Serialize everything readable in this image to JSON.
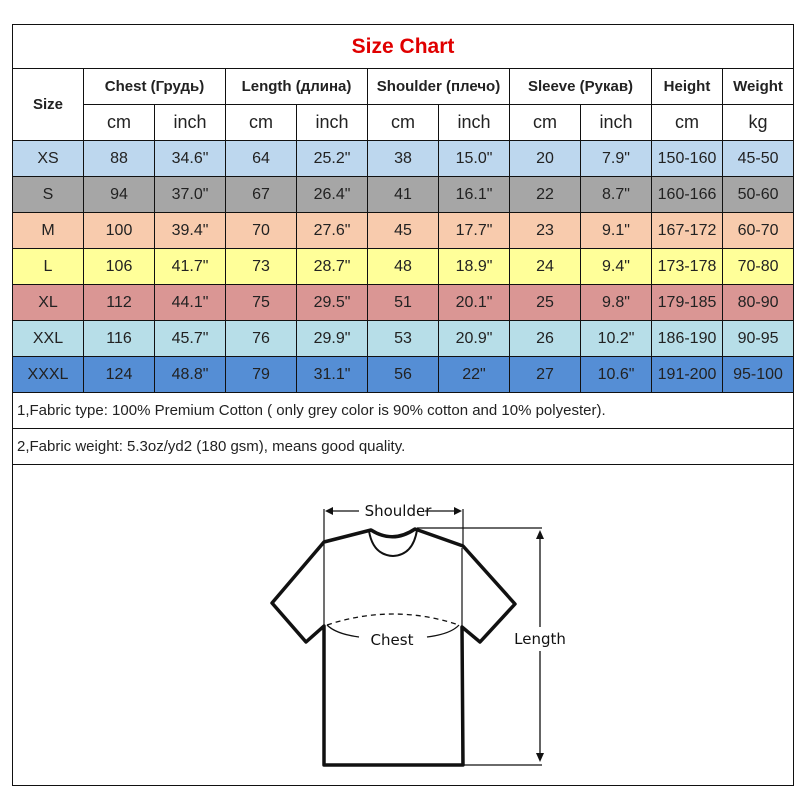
{
  "title": "Size Chart",
  "headers": {
    "size": "Size",
    "groups": [
      "Chest  (Грудь)",
      "Length (длина)",
      "Shoulder (плечо)",
      "Sleeve (Рукав)",
      "Height",
      "Weight"
    ],
    "units": [
      "cm",
      "inch",
      "cm",
      "inch",
      "cm",
      "inch",
      "cm",
      "inch",
      "cm",
      "kg"
    ]
  },
  "rows": [
    {
      "size": "XS",
      "color": "#bdd7ee",
      "values": [
        "88",
        "34.6\"",
        "64",
        "25.2\"",
        "38",
        "15.0\"",
        "20",
        "7.9\"",
        "150-160",
        "45-50"
      ]
    },
    {
      "size": "S",
      "color": "#a6a6a6",
      "values": [
        "94",
        "37.0\"",
        "67",
        "26.4\"",
        "41",
        "16.1\"",
        "22",
        "8.7\"",
        "160-166",
        "50-60"
      ]
    },
    {
      "size": "M",
      "color": "#f8cbad",
      "values": [
        "100",
        "39.4\"",
        "70",
        "27.6\"",
        "45",
        "17.7\"",
        "23",
        "9.1\"",
        "167-172",
        "60-70"
      ]
    },
    {
      "size": "L",
      "color": "#ffff99",
      "values": [
        "106",
        "41.7\"",
        "73",
        "28.7\"",
        "48",
        "18.9\"",
        "24",
        "9.4\"",
        "173-178",
        "70-80"
      ]
    },
    {
      "size": "XL",
      "color": "#da9694",
      "values": [
        "112",
        "44.1\"",
        "75",
        "29.5\"",
        "51",
        "20.1\"",
        "25",
        "9.8\"",
        "179-185",
        "80-90"
      ]
    },
    {
      "size": "XXL",
      "color": "#b7dee8",
      "values": [
        "116",
        "45.7\"",
        "76",
        "29.9\"",
        "53",
        "20.9\"",
        "26",
        "10.2\"",
        "186-190",
        "90-95"
      ]
    },
    {
      "size": "XXXL",
      "color": "#558ed5",
      "values": [
        "124",
        "48.8\"",
        "79",
        "31.1\"",
        "56",
        "22\"",
        "27",
        "10.6\"",
        "191-200",
        "95-100"
      ]
    }
  ],
  "notes": [
    "1,Fabric type: 100% Premium Cotton ( only grey color is 90% cotton and 10% polyester).",
    "2,Fabric weight: 5.3oz/yd2 (180 gsm), means good quality."
  ],
  "diagram": {
    "shoulder": "Shoulder",
    "chest": "Chest",
    "length": "Length"
  }
}
